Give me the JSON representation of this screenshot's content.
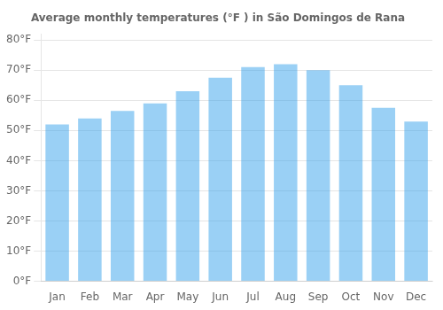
{
  "chart_data": {
    "type": "bar",
    "title": "Average monthly temperatures (°F ) in São Domingos de Rana",
    "categories": [
      "Jan",
      "Feb",
      "Mar",
      "Apr",
      "May",
      "Jun",
      "Jul",
      "Aug",
      "Sep",
      "Oct",
      "Nov",
      "Dec"
    ],
    "values": [
      52,
      54,
      56.5,
      59,
      63,
      67.5,
      71,
      72,
      70,
      65,
      57.5,
      53
    ],
    "ylim": [
      0,
      82
    ],
    "yticks": [
      {
        "value": 0,
        "label": "0°F"
      },
      {
        "value": 10,
        "label": "10°F"
      },
      {
        "value": 20,
        "label": "20°F"
      },
      {
        "value": 30,
        "label": "30°F"
      },
      {
        "value": 40,
        "label": "40°F"
      },
      {
        "value": 50,
        "label": "50°F"
      },
      {
        "value": 60,
        "label": "60°F"
      },
      {
        "value": 70,
        "label": "70°F"
      },
      {
        "value": 80,
        "label": "80°F"
      }
    ],
    "grid": true
  }
}
